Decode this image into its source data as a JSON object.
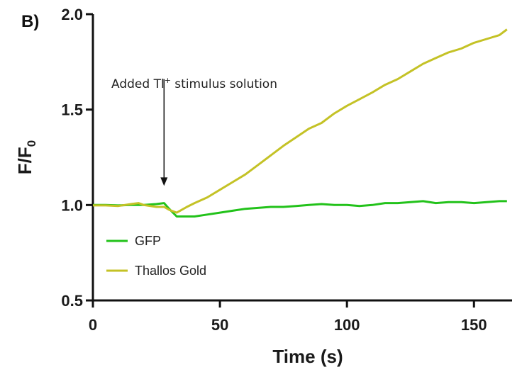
{
  "panel_label": "B)",
  "chart_data": {
    "type": "line",
    "xlabel": "Time (s)",
    "ylabel": "F/F",
    "ylabel_sub": "0",
    "xlim": [
      0,
      165
    ],
    "ylim": [
      0.5,
      2.0
    ],
    "xticks": [
      0,
      50,
      100,
      150
    ],
    "yticks": [
      0.5,
      1.0,
      1.5,
      2.0
    ],
    "xtick_labels": [
      "0",
      "50",
      "100",
      "150"
    ],
    "ytick_labels": [
      "0.5",
      "1.0",
      "1.5",
      "2.0"
    ],
    "grid": false,
    "legend_position": "bottom-left",
    "annotation": {
      "text_main": "Added Tl",
      "text_sup": "+",
      "text_rest": " stimulus solution",
      "x": 28,
      "y_from": 1.66,
      "y_to": 1.1
    },
    "series": [
      {
        "name": "GFP",
        "color": "#22c21a",
        "x": [
          0,
          5,
          10,
          15,
          20,
          25,
          28,
          30,
          33,
          37,
          40,
          45,
          50,
          55,
          60,
          65,
          70,
          75,
          80,
          85,
          90,
          95,
          100,
          105,
          110,
          115,
          120,
          125,
          130,
          135,
          140,
          145,
          150,
          155,
          160,
          163
        ],
        "y": [
          1.0,
          1.0,
          0.998,
          1.0,
          1.0,
          1.005,
          1.01,
          0.98,
          0.94,
          0.94,
          0.94,
          0.95,
          0.96,
          0.97,
          0.98,
          0.985,
          0.99,
          0.99,
          0.995,
          1.0,
          1.005,
          1.0,
          1.0,
          0.995,
          1.0,
          1.01,
          1.01,
          1.015,
          1.02,
          1.01,
          1.015,
          1.015,
          1.01,
          1.015,
          1.02,
          1.02
        ]
      },
      {
        "name": "Thallos Gold",
        "color": "#c4c226",
        "x": [
          0,
          5,
          10,
          15,
          18,
          20,
          25,
          28,
          30,
          33,
          37,
          40,
          45,
          50,
          55,
          60,
          65,
          70,
          75,
          80,
          85,
          90,
          95,
          100,
          105,
          110,
          115,
          120,
          125,
          130,
          135,
          140,
          145,
          150,
          155,
          160,
          163
        ],
        "y": [
          0.998,
          0.998,
          0.995,
          1.005,
          1.01,
          1.0,
          0.99,
          0.99,
          0.975,
          0.96,
          0.99,
          1.01,
          1.04,
          1.08,
          1.12,
          1.16,
          1.21,
          1.26,
          1.31,
          1.355,
          1.4,
          1.43,
          1.48,
          1.52,
          1.555,
          1.59,
          1.63,
          1.66,
          1.7,
          1.74,
          1.77,
          1.8,
          1.82,
          1.85,
          1.87,
          1.89,
          1.92
        ]
      }
    ]
  }
}
